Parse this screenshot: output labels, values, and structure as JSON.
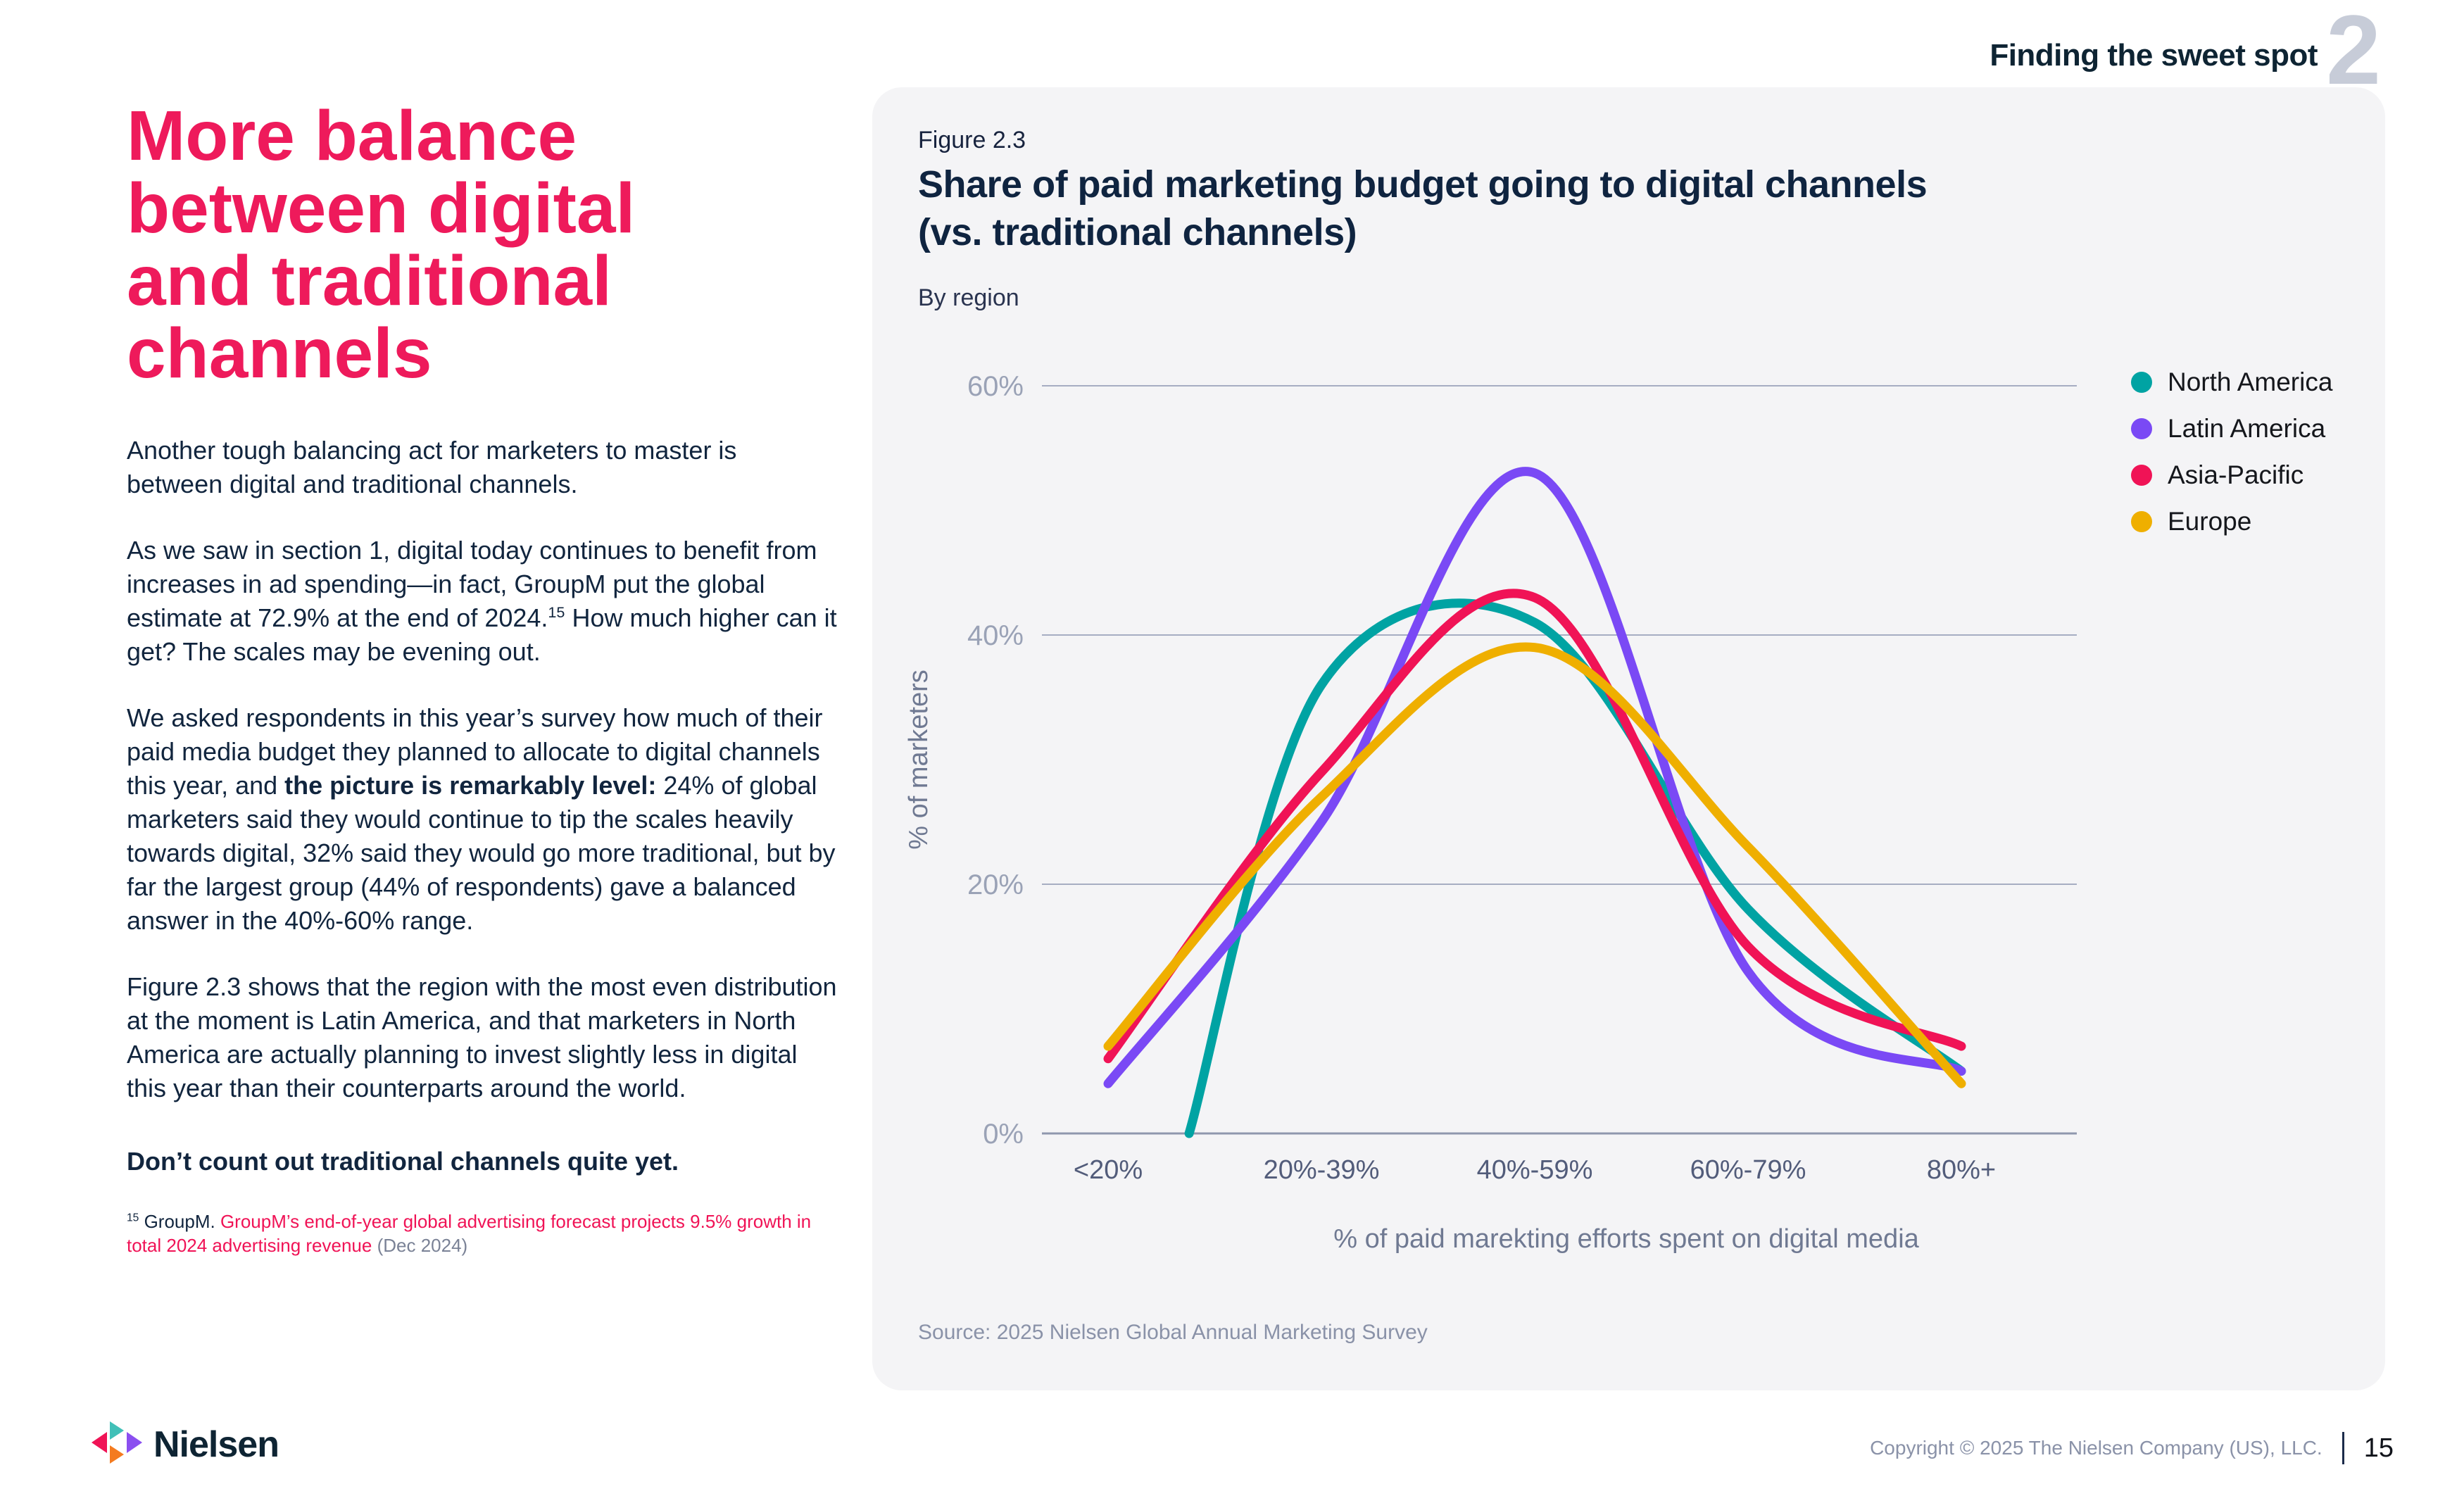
{
  "colors": {
    "accent_pink": "#EE1A5B",
    "navy_text": "#11253E",
    "card_background": "#F4F4F6",
    "axis_muted": "#9AA2B6"
  },
  "page": {
    "header": {
      "section_label": "Finding the sweet spot",
      "section_number": "2"
    },
    "footer": {
      "brand": "Nielsen",
      "copyright": "Copyright © 2025 The Nielsen Company (US), LLC.",
      "page_number": "15"
    }
  },
  "article": {
    "heading_lines": [
      "More balance",
      "between digital",
      "and traditional",
      "channels"
    ],
    "paragraphs": [
      {
        "segments": [
          {
            "t": "Another tough balancing act for marketers to master is between digital and traditional channels."
          }
        ]
      },
      {
        "segments": [
          {
            "t": "As we saw in section 1, digital today continues to benefit from increases in ad spending—in fact, GroupM put the global estimate at 72.9% at the end of 2024."
          },
          {
            "t": "15",
            "sup": true
          },
          {
            "t": " How much higher can it get? The scales may be evening out."
          }
        ]
      },
      {
        "segments": [
          {
            "t": "We asked respondents in this year’s survey how much of their paid media budget they planned to allocate to digital channels this year, and "
          },
          {
            "t": "the picture is remarkably level:",
            "b": true
          },
          {
            "t": " 24% of global marketers said they would continue to tip the scales heavily towards digital, 32% said they would go more traditional, but by far the largest group (44% of respondents) gave a balanced answer in the 40%-60% range."
          }
        ]
      },
      {
        "segments": [
          {
            "t": "Figure 2.3 shows that the region with the most even distribution at the moment is Latin America, and that marketers in North America are actually planning to invest slightly less in digital this year than their counterparts around the world."
          }
        ]
      },
      {
        "style": "statement",
        "segments": [
          {
            "t": "Don’t count out traditional channels quite yet.",
            "b": true
          }
        ]
      }
    ],
    "footnote": {
      "segments": [
        {
          "t": "15",
          "sup": true
        },
        {
          "t": " GroupM. "
        },
        {
          "t": "GroupM’s end-of-year global advertising forecast projects 9.5% growth in total 2024 advertising revenue",
          "link": true
        },
        {
          "t": " (Dec 2024)",
          "muted": true
        }
      ]
    }
  },
  "figure": {
    "label": "Figure 2.3",
    "title_lines": [
      "Share of paid marketing budget going to digital channels",
      "(vs. traditional channels)"
    ],
    "subtitle": "By region",
    "source": "Source: 2025 Nielsen Global Annual Marketing Survey",
    "chart_data": {
      "type": "line",
      "title": "Share of paid marketing budget going to digital channels (vs. traditional channels)",
      "subtitle": "By region",
      "categories": [
        "<20%",
        "20%-39%",
        "40%-59%",
        "60%-79%",
        "80%+"
      ],
      "series": [
        {
          "name": "North America",
          "color": "#00A3A3",
          "values": [
            0,
            36,
            41,
            18,
            5
          ],
          "start_offset_frac": 0.38
        },
        {
          "name": "Latin America",
          "color": "#7A49F5",
          "values": [
            4,
            25,
            53,
            13,
            5
          ]
        },
        {
          "name": "Asia-Pacific",
          "color": "#F01356",
          "values": [
            6,
            29,
            43,
            15,
            7
          ]
        },
        {
          "name": "Europe",
          "color": "#EFAF00",
          "values": [
            7,
            27,
            39,
            23,
            4
          ]
        }
      ],
      "xlabel": "% of paid marekting efforts spent on digital media",
      "ylabel": "% of marketers",
      "yticks": [
        0,
        20,
        40,
        60
      ],
      "ytick_labels": [
        "0%",
        "20%",
        "40%",
        "60%"
      ],
      "ylim": [
        0,
        63
      ],
      "grid": true,
      "legend_position": "right"
    }
  }
}
